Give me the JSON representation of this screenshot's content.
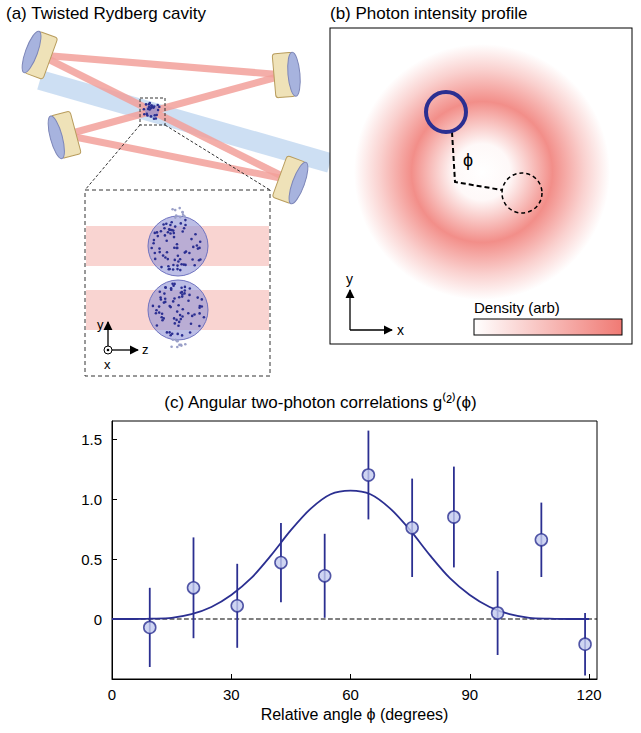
{
  "panels": {
    "a": {
      "title": "(a) Twisted Rydberg cavity",
      "axis_labels": {
        "y": "y",
        "x": "x",
        "z": "z"
      }
    },
    "b": {
      "title": "(b) Photon intensity profile",
      "axis_labels": {
        "x": "x",
        "y": "y"
      },
      "angle_label": "ϕ",
      "colorbar_label": "Density (arb)"
    }
  },
  "chart_data": {
    "type": "scatter",
    "title": "(c) Angular two-photon correlations g⁽²⁾(ϕ)",
    "xlabel": "Relative angle ϕ (degrees)",
    "xlim": [
      0,
      122
    ],
    "xticks": [
      0,
      30,
      60,
      90,
      120
    ],
    "ylim": [
      -0.5,
      1.65
    ],
    "yticks": [
      0,
      0.5,
      {
        "value": 1,
        "label": "1.0"
      },
      1.5
    ],
    "grid": false,
    "series": [
      {
        "type": "scatter",
        "marker": "circle",
        "color": "#2b2f91",
        "x": [
          9.5,
          20.5,
          31.5,
          42.5,
          53.5,
          64.5,
          75.5,
          86,
          97,
          108,
          119
        ],
        "values": [
          -0.07,
          0.26,
          0.11,
          0.47,
          0.36,
          1.2,
          0.76,
          0.85,
          0.05,
          0.66,
          -0.21
        ],
        "errors": [
          0.33,
          0.42,
          0.35,
          0.33,
          0.35,
          0.37,
          0.41,
          0.42,
          0.35,
          0.31,
          0.26
        ]
      },
      {
        "type": "line",
        "line_style": "solid",
        "color": "#2b2f91",
        "x": [
          0,
          5,
          10,
          15,
          20,
          25,
          30,
          35,
          40,
          45,
          50,
          55,
          60,
          65,
          70,
          75,
          80,
          85,
          90,
          95,
          100,
          105,
          110,
          115,
          120
        ],
        "values": [
          0,
          0,
          0.003,
          0.01,
          0.04,
          0.1,
          0.2,
          0.34,
          0.53,
          0.74,
          0.92,
          1.04,
          1.07,
          1.04,
          0.92,
          0.74,
          0.53,
          0.34,
          0.2,
          0.1,
          0.04,
          0.01,
          0.003,
          0,
          0
        ]
      },
      {
        "type": "line",
        "line_style": "dashed",
        "color": "#000000",
        "x": [
          0,
          122
        ],
        "values": [
          0,
          0
        ]
      }
    ]
  }
}
